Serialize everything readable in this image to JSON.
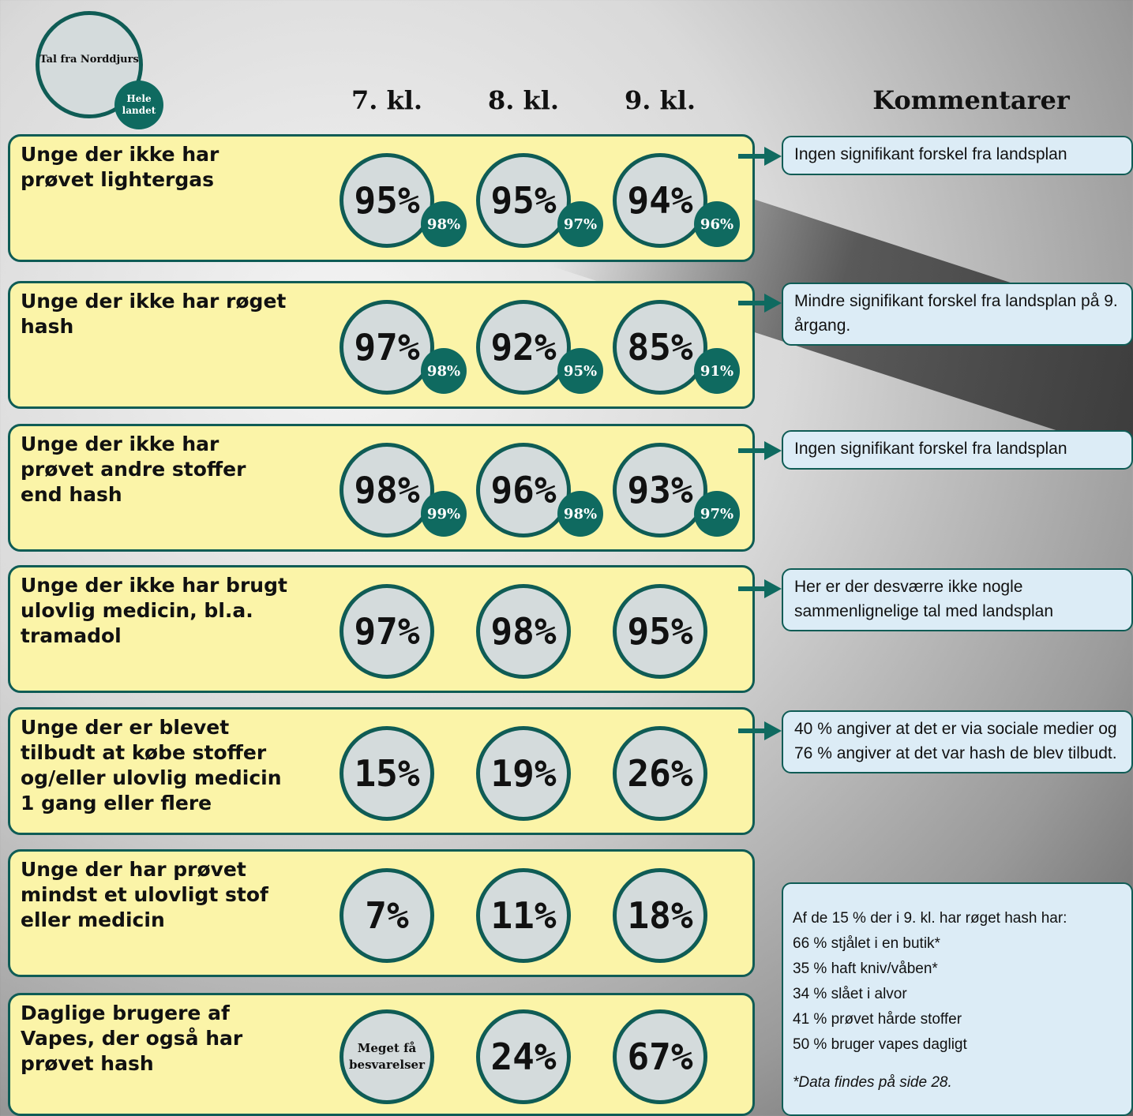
{
  "legend": {
    "local": "Tal fra Norddjurs",
    "national": "Hele landet"
  },
  "columns": [
    "7. kl.",
    "8. kl.",
    "9. kl."
  ],
  "comments_title": "Kommentarer",
  "rows": [
    {
      "label": "Unge der ikke har prøvet lightergas",
      "values": [
        "95%",
        "95%",
        "94%"
      ],
      "national": [
        "98%",
        "97%",
        "96%"
      ],
      "comment": "Ingen signifikant forskel fra landsplan"
    },
    {
      "label": "Unge der ikke har røget hash",
      "values": [
        "97%",
        "92%",
        "85%"
      ],
      "national": [
        "98%",
        "95%",
        "91%"
      ],
      "comment": "Mindre signifikant forskel fra landsplan på 9. årgang."
    },
    {
      "label": "Unge der ikke har prøvet andre stoffer end hash",
      "values": [
        "98%",
        "96%",
        "93%"
      ],
      "national": [
        "99%",
        "98%",
        "97%"
      ],
      "comment": "Ingen signifikant forskel fra landsplan"
    },
    {
      "label": "Unge der ikke har brugt ulovlig medicin, bl.a. tramadol",
      "values": [
        "97%",
        "98%",
        "95%"
      ],
      "comment": "Her er der desværre ikke nogle sammenlignelige tal med landsplan"
    },
    {
      "label": "Unge der er blevet tilbudt at købe stoffer og/eller ulovlig medicin 1 gang eller flere",
      "values": [
        "15%",
        "19%",
        "26%"
      ],
      "comment": "40 % angiver at det er via sociale medier og 76 % angiver at det var hash de blev tilbudt."
    },
    {
      "label": "Unge der har prøvet mindst et ulovligt stof eller medicin",
      "values": [
        "7%",
        "11%",
        "18%"
      ]
    },
    {
      "label": "Daglige brugere af Vapes, der også har prøvet hash",
      "values": [
        "Meget få besvarelser",
        "24%",
        "67%"
      ]
    }
  ],
  "side_note": {
    "lines": [
      "Af de 15 % der i 9. kl. har røget hash har:",
      "66 % stjålet i en butik*",
      "35 % haft kniv/våben*",
      "34 % slået i alvor",
      "41 % prøvet hårde stoffer",
      "50 % bruger vapes dagligt"
    ],
    "footnote": "*Data findes på side 28."
  }
}
